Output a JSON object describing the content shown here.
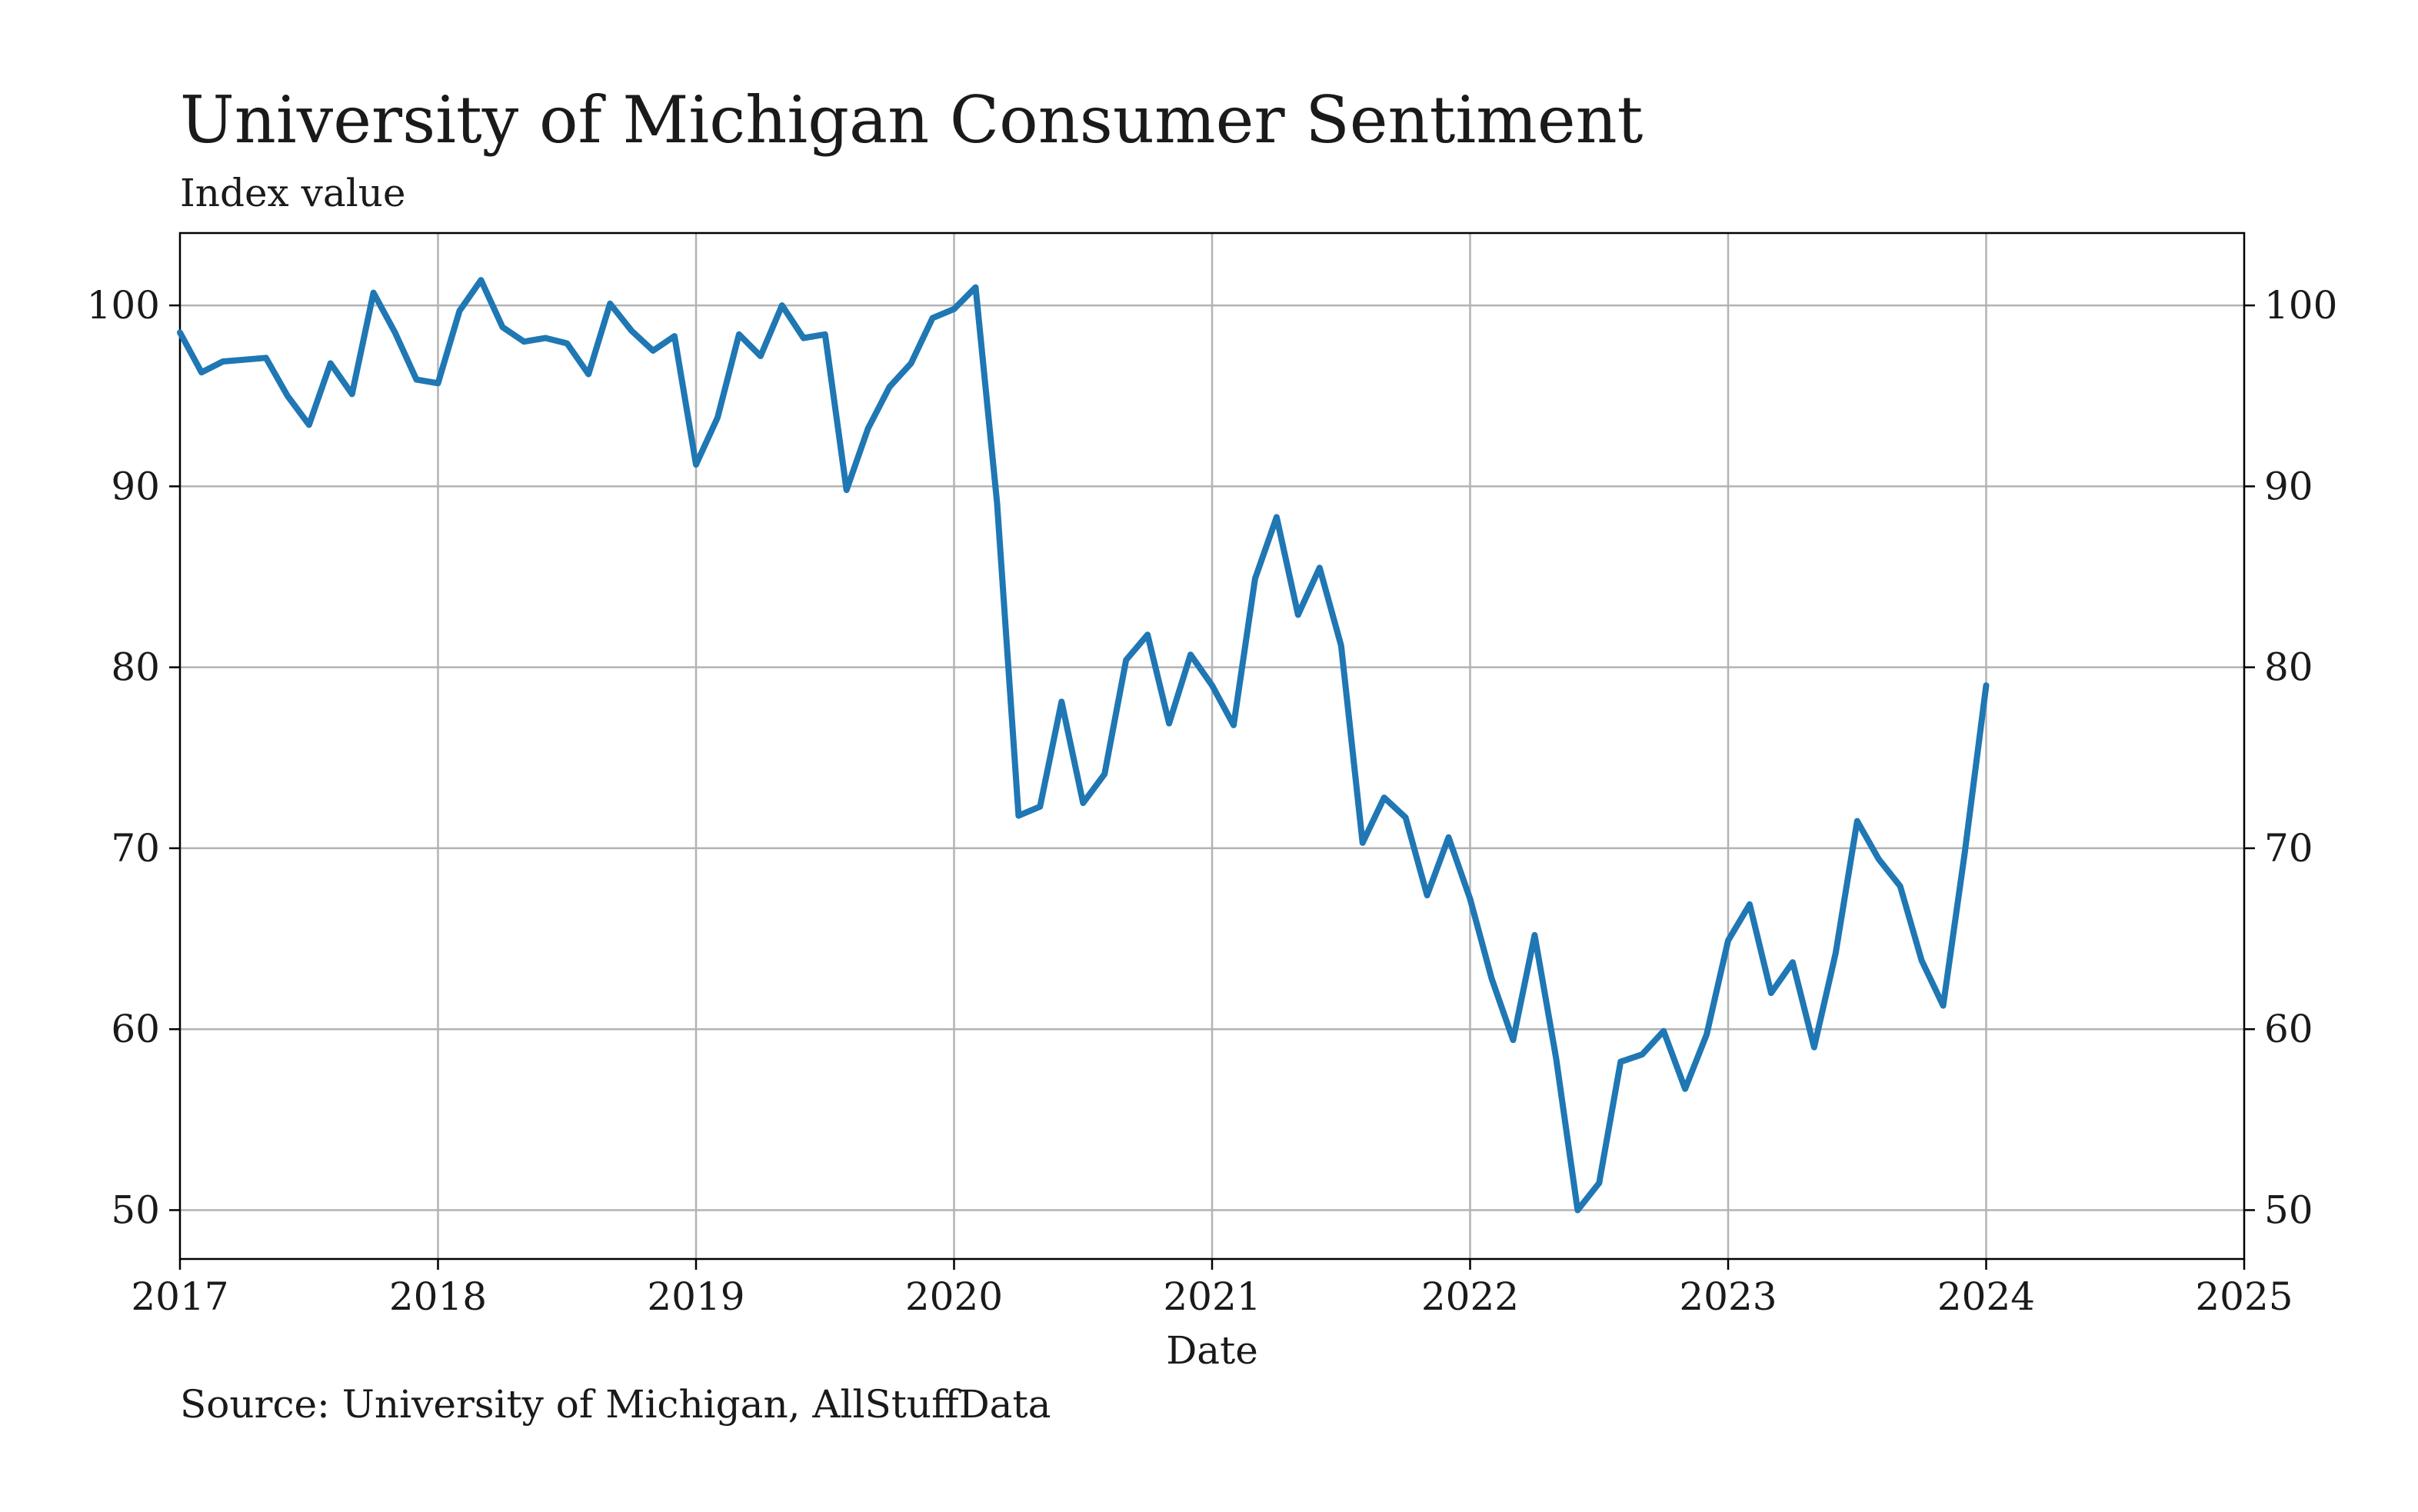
{
  "chart_data": {
    "type": "line",
    "title": "University of Michigan Consumer Sentiment",
    "subtitle": "Index value",
    "xlabel": "Date",
    "source": "Source: University of Michigan, AllStuffData",
    "xlim": [
      2017,
      2025
    ],
    "ylim": [
      47.3,
      104
    ],
    "x_ticks": [
      "2017",
      "2018",
      "2019",
      "2020",
      "2021",
      "2022",
      "2023",
      "2024",
      "2025"
    ],
    "y_ticks": [
      "50",
      "60",
      "70",
      "80",
      "90",
      "100"
    ],
    "grid": true,
    "right_axis_labels": true,
    "line_color": "#1f77b4",
    "series": [
      {
        "x": [
          "2017-01",
          "2017-02",
          "2017-03",
          "2017-04",
          "2017-05",
          "2017-06",
          "2017-07",
          "2017-08",
          "2017-09",
          "2017-10",
          "2017-11",
          "2017-12",
          "2018-01",
          "2018-02",
          "2018-03",
          "2018-04",
          "2018-05",
          "2018-06",
          "2018-07",
          "2018-08",
          "2018-09",
          "2018-10",
          "2018-11",
          "2018-12",
          "2019-01",
          "2019-02",
          "2019-03",
          "2019-04",
          "2019-05",
          "2019-06",
          "2019-07",
          "2019-08",
          "2019-09",
          "2019-10",
          "2019-11",
          "2019-12",
          "2020-01",
          "2020-02",
          "2020-03",
          "2020-04",
          "2020-05",
          "2020-06",
          "2020-07",
          "2020-08",
          "2020-09",
          "2020-10",
          "2020-11",
          "2020-12",
          "2021-01",
          "2021-02",
          "2021-03",
          "2021-04",
          "2021-05",
          "2021-06",
          "2021-07",
          "2021-08",
          "2021-09",
          "2021-10",
          "2021-11",
          "2021-12",
          "2022-01",
          "2022-02",
          "2022-03",
          "2022-04",
          "2022-05",
          "2022-06",
          "2022-07",
          "2022-08",
          "2022-09",
          "2022-10",
          "2022-11",
          "2022-12",
          "2023-01",
          "2023-02",
          "2023-03",
          "2023-04",
          "2023-05",
          "2023-06",
          "2023-07",
          "2023-08",
          "2023-09",
          "2023-10",
          "2023-11",
          "2023-12",
          "2024-01"
        ],
        "values": [
          98.5,
          96.3,
          96.9,
          97.0,
          97.1,
          95.0,
          93.4,
          96.8,
          95.1,
          100.7,
          98.5,
          95.9,
          95.7,
          99.7,
          101.4,
          98.8,
          98.0,
          98.2,
          97.9,
          96.2,
          100.1,
          98.6,
          97.5,
          98.3,
          91.2,
          93.8,
          98.4,
          97.2,
          100.0,
          98.2,
          98.4,
          89.8,
          93.2,
          95.5,
          96.8,
          99.3,
          99.8,
          101.0,
          89.1,
          71.8,
          72.3,
          78.1,
          72.5,
          74.1,
          80.4,
          81.8,
          76.9,
          80.7,
          79.0,
          76.8,
          84.9,
          88.3,
          82.9,
          85.5,
          81.2,
          70.3,
          72.8,
          71.7,
          67.4,
          70.6,
          67.2,
          62.8,
          59.4,
          65.2,
          58.4,
          50.0,
          51.5,
          58.2,
          58.6,
          59.9,
          56.7,
          59.7,
          64.9,
          66.9,
          62.0,
          63.7,
          59.0,
          64.2,
          71.5,
          69.4,
          67.9,
          63.8,
          61.3,
          69.7,
          79.0
        ]
      }
    ]
  }
}
